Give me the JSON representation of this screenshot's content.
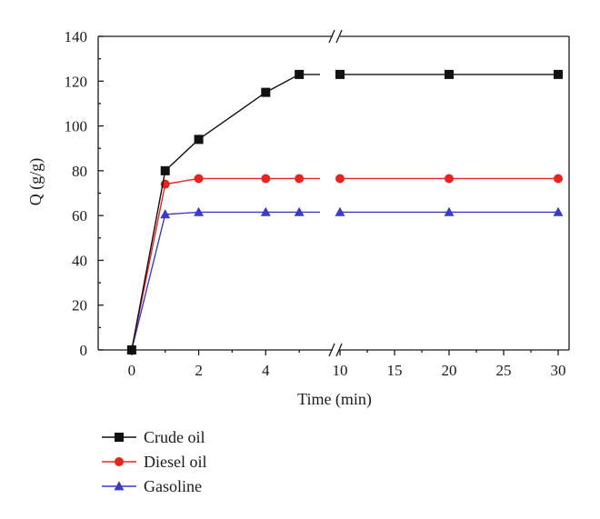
{
  "chart_data": {
    "type": "line",
    "xlabel": "Time (min)",
    "ylabel": "Q (g/g)",
    "ylim": [
      0,
      140
    ],
    "y_ticks": [
      0,
      20,
      40,
      60,
      80,
      100,
      120,
      140
    ],
    "x_ticks": [
      0,
      2,
      4,
      10,
      15,
      20,
      25,
      30
    ],
    "x_tick_labels": [
      "0",
      "2",
      "4",
      "10",
      "15",
      "20",
      "25",
      "30"
    ],
    "axis_break": "between 5 and 10 min (broken x-axis)",
    "x_segments": [
      {
        "range": [
          -1,
          6
        ]
      },
      {
        "range": [
          10,
          31
        ]
      }
    ],
    "grid": false,
    "legend_position": "below plot, left",
    "series": [
      {
        "name": "Crude oil",
        "color": "#111111",
        "marker": "square",
        "x": [
          0,
          1,
          2,
          4,
          5,
          10,
          20,
          30
        ],
        "y": [
          0,
          80,
          94,
          115,
          123,
          123,
          123,
          123
        ]
      },
      {
        "name": "Diesel oil",
        "color": "#e8251c",
        "marker": "circle",
        "x": [
          0,
          1,
          2,
          4,
          5,
          10,
          20,
          30
        ],
        "y": [
          0,
          74,
          76.5,
          76.5,
          76.5,
          76.5,
          76.5,
          76.5
        ]
      },
      {
        "name": "Gasoline",
        "color": "#3a3cc4",
        "marker": "triangle",
        "x": [
          0,
          1,
          2,
          4,
          5,
          10,
          20,
          30
        ],
        "y": [
          0,
          60.5,
          61.5,
          61.5,
          61.5,
          61.5,
          61.5,
          61.5
        ]
      }
    ]
  }
}
